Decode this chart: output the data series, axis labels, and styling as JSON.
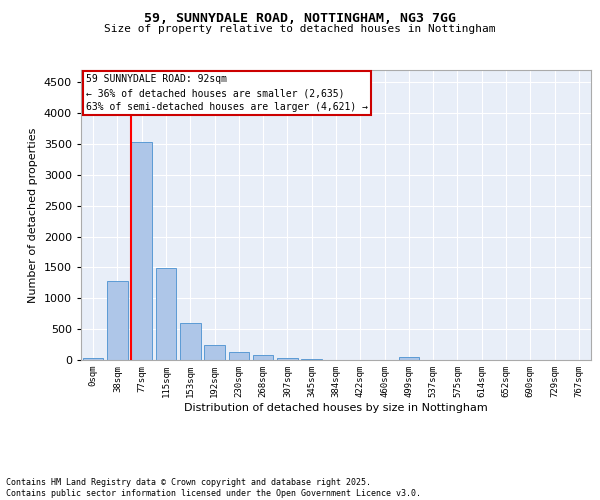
{
  "title_line1": "59, SUNNYDALE ROAD, NOTTINGHAM, NG3 7GG",
  "title_line2": "Size of property relative to detached houses in Nottingham",
  "xlabel": "Distribution of detached houses by size in Nottingham",
  "ylabel": "Number of detached properties",
  "bin_labels": [
    "0sqm",
    "38sqm",
    "77sqm",
    "115sqm",
    "153sqm",
    "192sqm",
    "230sqm",
    "268sqm",
    "307sqm",
    "345sqm",
    "384sqm",
    "422sqm",
    "460sqm",
    "499sqm",
    "537sqm",
    "575sqm",
    "614sqm",
    "652sqm",
    "690sqm",
    "729sqm",
    "767sqm"
  ],
  "bar_values": [
    30,
    1280,
    3540,
    1490,
    600,
    250,
    130,
    80,
    40,
    20,
    5,
    0,
    0,
    45,
    0,
    0,
    0,
    0,
    0,
    0,
    0
  ],
  "bar_color": "#aec6e8",
  "bar_edge_color": "#5b9bd5",
  "red_line_bin": 2,
  "annotation_title": "59 SUNNYDALE ROAD: 92sqm",
  "annotation_line2": "← 36% of detached houses are smaller (2,635)",
  "annotation_line3": "63% of semi-detached houses are larger (4,621) →",
  "annotation_box_edgecolor": "#cc0000",
  "ylim": [
    0,
    4700
  ],
  "yticks": [
    0,
    500,
    1000,
    1500,
    2000,
    2500,
    3000,
    3500,
    4000,
    4500
  ],
  "background_color": "#e8eef8",
  "grid_color": "#ffffff",
  "footer_line1": "Contains HM Land Registry data © Crown copyright and database right 2025.",
  "footer_line2": "Contains public sector information licensed under the Open Government Licence v3.0."
}
